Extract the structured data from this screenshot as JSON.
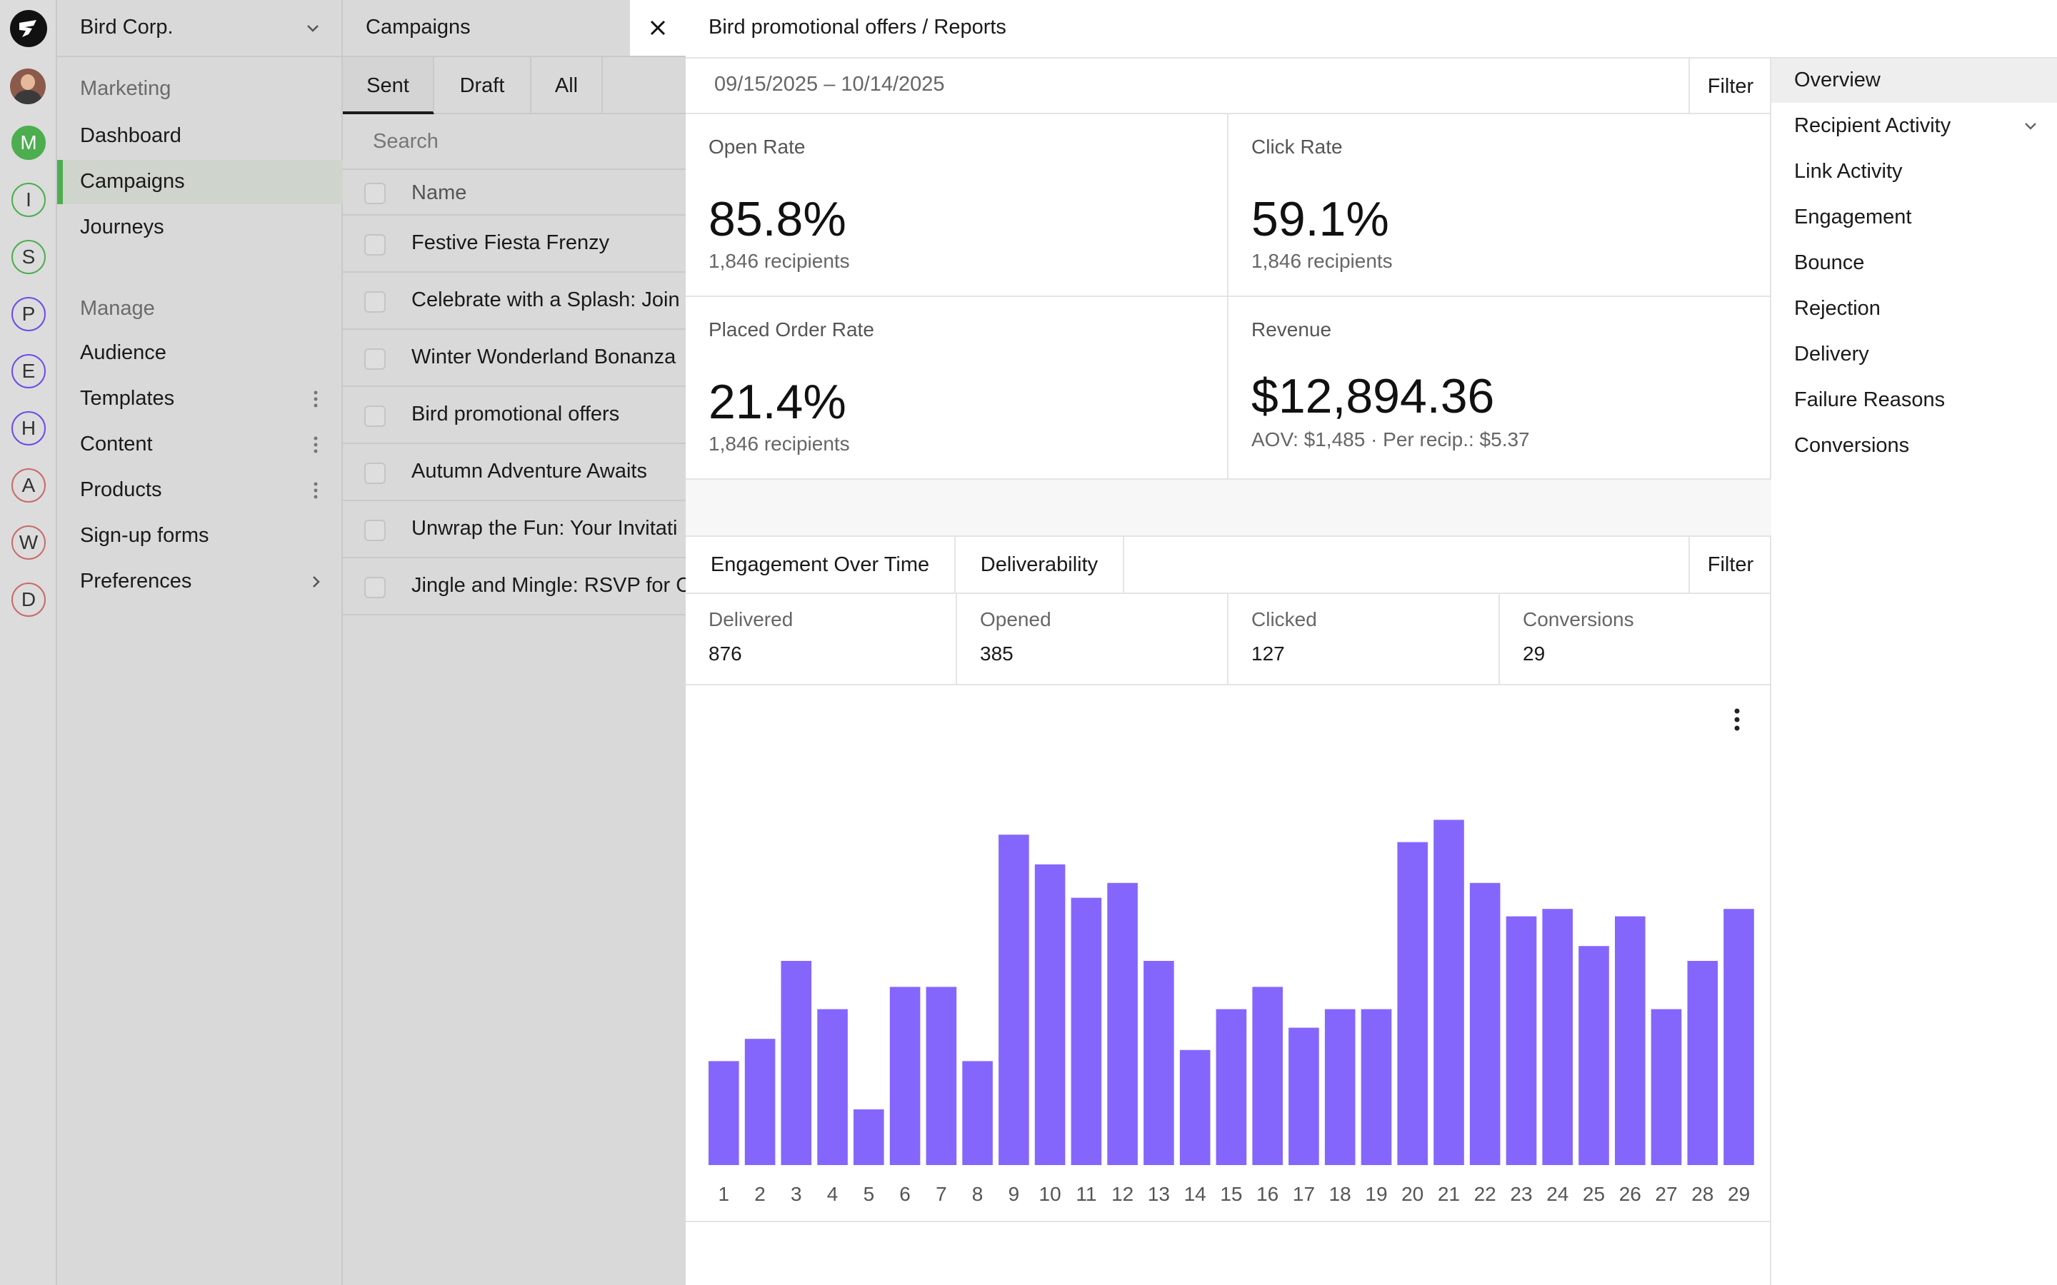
{
  "rail": {
    "items": [
      {
        "letter": "M",
        "color": "#4cae4f",
        "filled": true
      },
      {
        "letter": "I",
        "color": "#4cae4f",
        "filled": false
      },
      {
        "letter": "S",
        "color": "#4cae4f",
        "filled": false
      },
      {
        "letter": "P",
        "color": "#6c4de6",
        "filled": false
      },
      {
        "letter": "E",
        "color": "#6c4de6",
        "filled": false
      },
      {
        "letter": "H",
        "color": "#6c4de6",
        "filled": false
      },
      {
        "letter": "A",
        "color": "#c96a6a",
        "filled": false
      },
      {
        "letter": "W",
        "color": "#c96a6a",
        "filled": false
      },
      {
        "letter": "D",
        "color": "#c96a6a",
        "filled": false
      }
    ]
  },
  "nav": {
    "org_name": "Bird Corp.",
    "section_marketing": "Marketing",
    "marketing_items": [
      "Dashboard",
      "Campaigns",
      "Journeys"
    ],
    "section_manage": "Manage",
    "manage_items": [
      "Audience",
      "Templates",
      "Content",
      "Products",
      "Sign-up forms",
      "Preferences"
    ]
  },
  "list": {
    "title": "Campaigns",
    "tabs": [
      "Sent",
      "Draft",
      "All"
    ],
    "search_placeholder": "Search",
    "column_name": "Name",
    "rows": [
      "Festive Fiesta Frenzy",
      "Celebrate with a Splash: Join",
      "Winter Wonderland Bonanza",
      "Bird promotional offers",
      "Autumn Adventure Awaits",
      "Unwrap the Fun: Your Invitati",
      "Jingle and Mingle: RSVP for C"
    ]
  },
  "main": {
    "breadcrumb": "Bird promotional offers / Reports",
    "date_range": "09/15/2025 – 10/14/2025",
    "filter_label": "Filter",
    "kpis": {
      "open_rate": {
        "label": "Open Rate",
        "value": "85.8%",
        "sub": "1,846 recipients"
      },
      "click_rate": {
        "label": "Click Rate",
        "value": "59.1%",
        "sub": "1,846 recipients"
      },
      "placed_order_rate": {
        "label": "Placed Order Rate",
        "value": "21.4%",
        "sub": "1,846 recipients"
      },
      "revenue": {
        "label": "Revenue",
        "value": "$12,894.36",
        "sub": "AOV: $1,485 · Per recip.: $5.37"
      }
    },
    "tab_engagement": "Engagement Over Time",
    "tab_deliverability": "Deliverability",
    "stats": [
      {
        "label": "Delivered",
        "value": "876"
      },
      {
        "label": "Opened",
        "value": "385"
      },
      {
        "label": "Clicked",
        "value": "127"
      },
      {
        "label": "Conversions",
        "value": "29"
      }
    ]
  },
  "report_nav": {
    "items": [
      "Overview",
      "Recipient Activity",
      "Link Activity",
      "Engagement",
      "Bounce",
      "Rejection",
      "Delivery",
      "Failure Reasons",
      "Conversions"
    ]
  },
  "colors": {
    "bar": "#8566fc",
    "accent": "#4cae4f"
  },
  "chart_data": {
    "type": "bar",
    "categories": [
      "1",
      "2",
      "3",
      "4",
      "5",
      "6",
      "7",
      "8",
      "9",
      "10",
      "11",
      "12",
      "13",
      "14",
      "15",
      "16",
      "17",
      "18",
      "19",
      "20",
      "21",
      "22",
      "23",
      "24",
      "25",
      "26",
      "27",
      "28",
      "29"
    ],
    "values": [
      28,
      34,
      55,
      42,
      15,
      48,
      48,
      28,
      89,
      81,
      72,
      76,
      55,
      31,
      42,
      48,
      37,
      42,
      42,
      87,
      93,
      76,
      67,
      69,
      59,
      67,
      42,
      55,
      69
    ],
    "ylim": [
      0,
      100
    ],
    "title": "",
    "xlabel": "",
    "ylabel": ""
  }
}
